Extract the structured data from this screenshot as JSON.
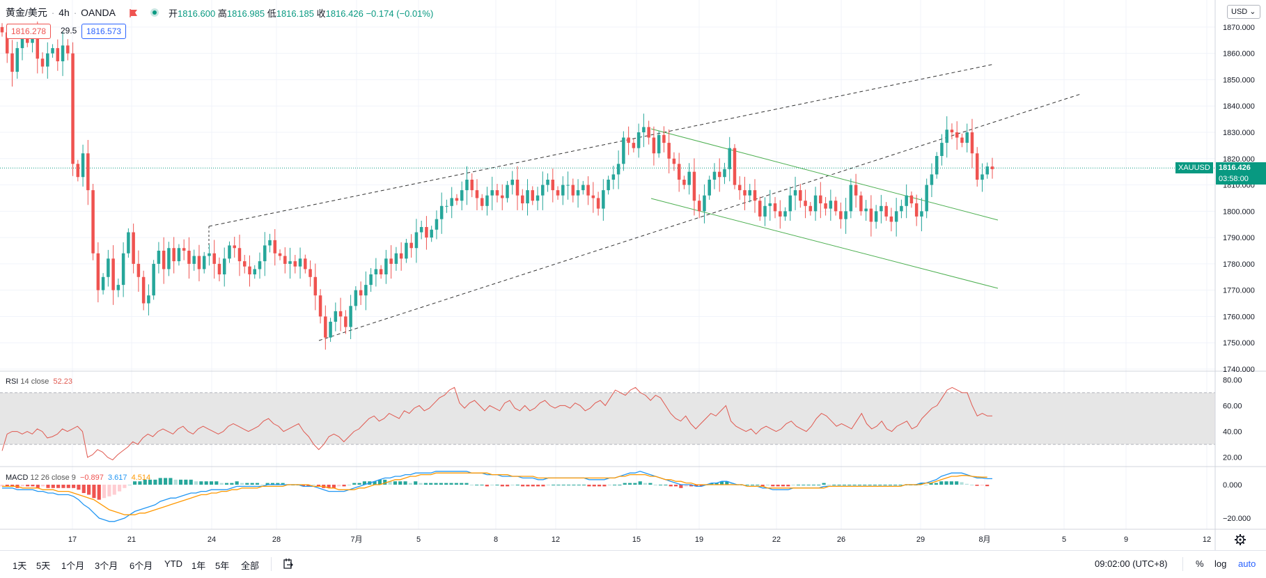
{
  "header": {
    "symbol": "黄金/美元",
    "interval": "4h",
    "exchange": "OANDA",
    "open_label": "开",
    "open": "1816.600",
    "high_label": "高",
    "high": "1816.985",
    "low_label": "低",
    "low": "1816.185",
    "close_label": "收",
    "close": "1816.426",
    "change": "−0.174 (−0.01%)",
    "sell_price": "1816.278",
    "spread": "29.5",
    "buy_price": "1816.573"
  },
  "currency_button": "USD",
  "price_axis": {
    "ticks": [
      "1870.000",
      "1860.000",
      "1850.000",
      "1840.000",
      "1830.000",
      "1820.000",
      "1810.000",
      "1800.000",
      "1790.000",
      "1780.000",
      "1770.000",
      "1760.000",
      "1750.000",
      "1740.000"
    ],
    "symbol_tag": "XAUUSD",
    "last_price": "1816.426",
    "countdown": "03:58:00"
  },
  "rsi": {
    "name": "RSI",
    "params": "14 close",
    "value": "52.23",
    "ticks": [
      "80.00",
      "60.00",
      "40.00",
      "20.00"
    ]
  },
  "macd": {
    "name": "MACD",
    "params": "12 26 close 9",
    "hist": "−0.897",
    "macd": "3.617",
    "signal": "4.514",
    "ticks": [
      "0.000",
      "−20.000"
    ]
  },
  "time_axis": [
    "17",
    "21",
    "24",
    "28",
    "7月",
    "5",
    "8",
    "12",
    "15",
    "19",
    "22",
    "26",
    "29",
    "8月",
    "5",
    "9",
    "12"
  ],
  "bottom": {
    "timeframes": [
      "1天",
      "5天",
      "1个月",
      "3个月",
      "6个月",
      "YTD",
      "1年",
      "5年",
      "全部"
    ],
    "clock": "09:02:00 (UTC+8)",
    "percent": "%",
    "log": "log",
    "auto": "auto"
  },
  "colors": {
    "up": "#26a69a",
    "down": "#ef5350",
    "rsi_line": "#e0584f",
    "macd_line": "#2196f3",
    "signal_line": "#ff9800",
    "trend_channel": "#4caf50",
    "price_tag": "#089981"
  },
  "chart_data": {
    "type": "candlestick",
    "series": [
      {
        "name": "XAUUSD",
        "closes": [
          1868,
          1860,
          1853,
          1862,
          1866,
          1864,
          1867,
          1858,
          1855,
          1860,
          1862,
          1857,
          1863,
          1860,
          1818,
          1813,
          1822,
          1808,
          1784,
          1770,
          1775,
          1782,
          1770,
          1772,
          1784,
          1792,
          1780,
          1775,
          1765,
          1768,
          1780,
          1785,
          1778,
          1786,
          1781,
          1786,
          1785,
          1780,
          1783,
          1778,
          1783,
          1784,
          1780,
          1776,
          1782,
          1787,
          1786,
          1781,
          1779,
          1776,
          1778,
          1781,
          1787,
          1789,
          1784,
          1783,
          1780,
          1781,
          1779,
          1782,
          1778,
          1775,
          1768,
          1760,
          1752,
          1758,
          1762,
          1760,
          1756,
          1764,
          1770,
          1768,
          1772,
          1776,
          1778,
          1776,
          1782,
          1780,
          1784,
          1782,
          1788,
          1786,
          1792,
          1794,
          1790,
          1793,
          1797,
          1802,
          1802,
          1805,
          1804,
          1808,
          1812,
          1808,
          1805,
          1802,
          1806,
          1808,
          1806,
          1805,
          1810,
          1812,
          1806,
          1803,
          1808,
          1804,
          1806,
          1810,
          1812,
          1808,
          1806,
          1810,
          1810,
          1806,
          1808,
          1810,
          1806,
          1805,
          1801,
          1808,
          1812,
          1814,
          1818,
          1828,
          1826,
          1824,
          1830,
          1832,
          1828,
          1822,
          1829,
          1826,
          1820,
          1818,
          1812,
          1810,
          1815,
          1804,
          1800,
          1806,
          1812,
          1815,
          1813,
          1816,
          1824,
          1810,
          1808,
          1806,
          1808,
          1804,
          1798,
          1802,
          1803,
          1800,
          1798,
          1800,
          1806,
          1808,
          1804,
          1802,
          1800,
          1806,
          1803,
          1801,
          1804,
          1800,
          1797,
          1800,
          1810,
          1806,
          1800,
          1801,
          1796,
          1800,
          1802,
          1798,
          1796,
          1800,
          1802,
          1806,
          1803,
          1798,
          1800,
          1810,
          1814,
          1821,
          1826,
          1831,
          1830,
          1828,
          1826,
          1830,
          1822,
          1812,
          1814,
          1817,
          1816
        ]
      },
      {
        "name": "RSI 14 close",
        "values": [
          25,
          38,
          40,
          40,
          38,
          40,
          38,
          42,
          40,
          35,
          36,
          38,
          42,
          40,
          42,
          44,
          40,
          20,
          22,
          26,
          24,
          20,
          18,
          22,
          25,
          28,
          32,
          30,
          35,
          38,
          36,
          40,
          42,
          40,
          38,
          42,
          44,
          40,
          38,
          42,
          44,
          42,
          40,
          38,
          40,
          44,
          46,
          44,
          42,
          40,
          42,
          44,
          48,
          50,
          46,
          44,
          40,
          42,
          44,
          46,
          40,
          36,
          30,
          26,
          30,
          36,
          38,
          36,
          32,
          36,
          40,
          42,
          46,
          50,
          52,
          48,
          50,
          54,
          52,
          50,
          56,
          54,
          58,
          60,
          56,
          58,
          62,
          66,
          68,
          72,
          74,
          62,
          58,
          62,
          64,
          60,
          56,
          60,
          58,
          56,
          62,
          64,
          58,
          56,
          60,
          56,
          58,
          62,
          64,
          60,
          58,
          60,
          60,
          58,
          62,
          60,
          56,
          58,
          62,
          64,
          60,
          66,
          72,
          70,
          68,
          72,
          74,
          70,
          68,
          64,
          68,
          66,
          60,
          54,
          50,
          48,
          52,
          46,
          42,
          46,
          50,
          54,
          52,
          56,
          60,
          48,
          44,
          42,
          40,
          42,
          38,
          42,
          44,
          42,
          40,
          42,
          46,
          48,
          44,
          42,
          40,
          44,
          50,
          54,
          52,
          48,
          44,
          46,
          44,
          42,
          48,
          54,
          46,
          42,
          44,
          48,
          42,
          40,
          44,
          46,
          48,
          42,
          44,
          50,
          54,
          58,
          60,
          66,
          72,
          74,
          72,
          70,
          70,
          60,
          52,
          54,
          52,
          52
        ]
      },
      {
        "name": "MACD",
        "values": [
          -2,
          -2,
          -2,
          -3,
          -3,
          -3,
          -3,
          -4,
          -4,
          -5,
          -5,
          -6,
          -6,
          -6,
          -7,
          -9,
          -12,
          -14,
          -17,
          -20,
          -21,
          -22,
          -22,
          -21,
          -20,
          -18,
          -16,
          -15,
          -14,
          -13,
          -12,
          -10,
          -9,
          -8,
          -8,
          -7,
          -6,
          -5,
          -5,
          -4,
          -4,
          -3,
          -3,
          -3,
          -3,
          -2,
          -1,
          -1,
          -1,
          -1,
          -1,
          -1,
          0,
          0,
          0,
          0,
          0,
          0,
          0,
          -1,
          -1,
          -1,
          -2,
          -3,
          -4,
          -4,
          -4,
          -4,
          -3,
          -2,
          -1,
          0,
          1,
          2,
          3,
          4,
          4,
          5,
          5,
          6,
          6,
          7,
          7,
          7,
          7,
          8,
          8,
          8,
          8,
          8,
          8,
          8,
          7,
          7,
          7,
          6,
          6,
          6,
          5,
          5,
          5,
          5,
          4,
          4,
          4,
          3,
          3,
          4,
          4,
          4,
          4,
          4,
          4,
          4,
          4,
          3,
          3,
          3,
          3,
          4,
          4,
          5,
          6,
          7,
          7,
          8,
          7,
          6,
          5,
          4,
          3,
          2,
          1,
          0,
          0,
          0,
          -1,
          -1,
          0,
          1,
          1,
          2,
          2,
          1,
          0,
          0,
          -1,
          -1,
          -1,
          -2,
          -2,
          -3,
          -3,
          -3,
          -3,
          -2,
          -2,
          -2,
          -2,
          -2,
          -2,
          -1,
          -1,
          -1,
          -1,
          -1,
          -1,
          -1,
          -1,
          -1,
          -1,
          -1,
          -1,
          -1,
          -1,
          -1,
          -1,
          0,
          0,
          0,
          1,
          1,
          2,
          3,
          5,
          6,
          7,
          7,
          7,
          6,
          5,
          4,
          4,
          3.6,
          3.6
        ]
      },
      {
        "name": "Signal",
        "values": [
          -1,
          -1,
          -1,
          -1,
          -2,
          -2,
          -2,
          -2,
          -3,
          -3,
          -3,
          -4,
          -4,
          -4,
          -5,
          -6,
          -7,
          -8,
          -9,
          -11,
          -13,
          -15,
          -16,
          -17,
          -18,
          -18,
          -18,
          -17,
          -17,
          -16,
          -15,
          -14,
          -13,
          -12,
          -11,
          -10,
          -9,
          -8,
          -7,
          -6,
          -6,
          -5,
          -5,
          -4,
          -4,
          -3,
          -3,
          -2,
          -2,
          -2,
          -2,
          -1,
          -1,
          -1,
          -1,
          -1,
          0,
          0,
          0,
          0,
          0,
          -1,
          -1,
          -1,
          -2,
          -2,
          -3,
          -3,
          -3,
          -3,
          -2,
          -2,
          -1,
          0,
          0,
          1,
          2,
          3,
          3,
          4,
          5,
          5,
          6,
          6,
          6,
          7,
          7,
          7,
          7,
          7,
          7,
          7,
          7,
          7,
          7,
          7,
          6,
          6,
          6,
          6,
          5,
          5,
          5,
          5,
          5,
          4,
          4,
          4,
          4,
          4,
          4,
          4,
          4,
          4,
          4,
          4,
          4,
          4,
          4,
          4,
          4,
          5,
          5,
          6,
          6,
          6,
          6,
          5,
          5,
          4,
          3,
          3,
          2,
          2,
          1,
          1,
          0,
          0,
          0,
          0,
          0,
          0,
          0,
          0,
          0,
          0,
          -1,
          -1,
          -1,
          -1,
          -2,
          -2,
          -2,
          -2,
          -2,
          -2,
          -2,
          -2,
          -2,
          -2,
          -2,
          -2,
          -1,
          -1,
          -1,
          -1,
          -1,
          -1,
          -1,
          -1,
          -1,
          -1,
          -1,
          -1,
          -1,
          -1,
          -1,
          0,
          0,
          0,
          0,
          1,
          1,
          2,
          3,
          4,
          5,
          5,
          5.5,
          5.5,
          5,
          4.7,
          4.5,
          4.5
        ]
      }
    ],
    "ylim_price": [
      1740,
      1875
    ],
    "ylim_rsi": [
      15,
      85
    ],
    "ylim_macd": [
      -25,
      10
    ],
    "rsi_band": [
      30,
      70
    ],
    "last_price": 1816.426,
    "grid": true
  }
}
